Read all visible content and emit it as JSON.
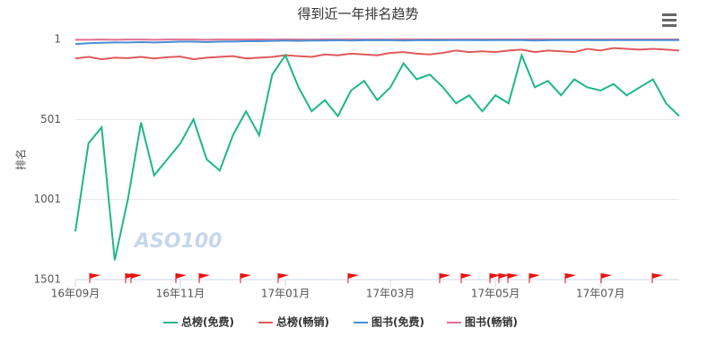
{
  "chart_data": {
    "type": "line",
    "title": "得到近一年排名趋势",
    "y_label": "排名",
    "watermark": "ASO100",
    "categories": [
      "16年09月",
      null,
      null,
      null,
      null,
      null,
      null,
      null,
      "16年11月",
      null,
      null,
      null,
      null,
      null,
      null,
      null,
      "17年01月",
      null,
      null,
      null,
      null,
      null,
      null,
      null,
      "17年03月",
      null,
      null,
      null,
      null,
      null,
      null,
      null,
      "17年05月",
      null,
      null,
      null,
      null,
      null,
      null,
      null,
      "17年07月",
      null,
      null,
      null,
      null,
      null,
      null
    ],
    "series": [
      {
        "name": "总榜(免费)",
        "color": "#1fb68a",
        "values": [
          1200,
          650,
          550,
          1380,
          1000,
          520,
          850,
          750,
          650,
          500,
          750,
          820,
          600,
          450,
          600,
          220,
          100,
          300,
          450,
          380,
          480,
          320,
          260,
          380,
          300,
          150,
          250,
          220,
          300,
          400,
          350,
          450,
          350,
          400,
          100,
          300,
          260,
          350,
          250,
          300,
          320,
          280,
          350,
          300,
          250,
          400,
          480
        ]
      },
      {
        "name": "总榜(畅销)",
        "color": "#e05a5a",
        "values": [
          120,
          110,
          125,
          115,
          118,
          110,
          120,
          112,
          108,
          125,
          115,
          110,
          105,
          120,
          115,
          110,
          100,
          105,
          110,
          95,
          100,
          90,
          95,
          100,
          85,
          80,
          90,
          95,
          85,
          70,
          80,
          75,
          80,
          70,
          65,
          80,
          70,
          75,
          80,
          60,
          70,
          55,
          60,
          65,
          60,
          65,
          70
        ]
      },
      {
        "name": "图书(免费)",
        "color": "#4a8fd6",
        "values": [
          30,
          25,
          22,
          20,
          20,
          18,
          20,
          18,
          15,
          15,
          18,
          15,
          14,
          12,
          12,
          10,
          8,
          10,
          8,
          8,
          6,
          8,
          6,
          5,
          6,
          8,
          6,
          5,
          6,
          5,
          5,
          6,
          5,
          5,
          5,
          8,
          6,
          5,
          5,
          5,
          6,
          5,
          5,
          5,
          5,
          5,
          5
        ]
      },
      {
        "name": "图书(畅销)",
        "color": "#e07090",
        "values": [
          3,
          3,
          2,
          3,
          2,
          2,
          3,
          2,
          2,
          2,
          3,
          2,
          2,
          2,
          1,
          2,
          1,
          2,
          2,
          1,
          1,
          2,
          1,
          1,
          2,
          1,
          1,
          1,
          1,
          2,
          1,
          1,
          1,
          1,
          1,
          1,
          1,
          1,
          1,
          1,
          1,
          1,
          1,
          1,
          1,
          1,
          1
        ]
      }
    ],
    "ylim": [
      1501,
      1
    ],
    "yticks": [
      1,
      501,
      1001,
      1501
    ],
    "grid": true,
    "legend": "bottom"
  }
}
